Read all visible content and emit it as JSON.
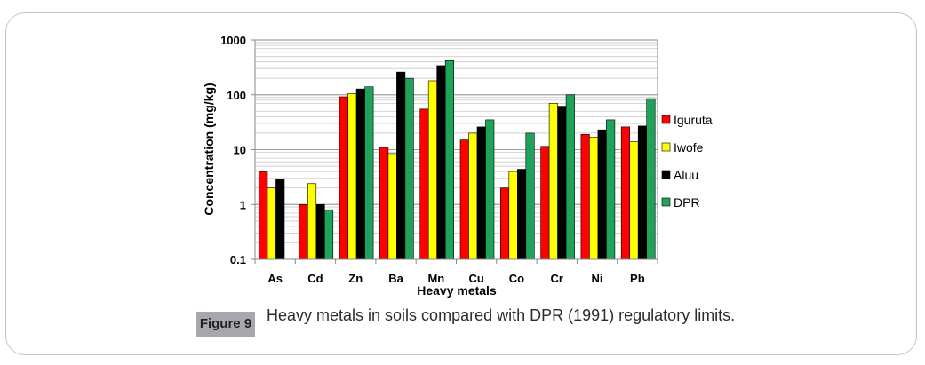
{
  "figure": {
    "label": "Figure 9",
    "caption": "Heavy metals in soils compared with DPR (1991) regulatory limits."
  },
  "chart_data": {
    "type": "bar",
    "title": "",
    "xlabel": "Heavy metals",
    "ylabel": "Concentration (mg/kg)",
    "yscale": "log",
    "ylim": [
      0.1,
      1000
    ],
    "yticks": [
      "0.1",
      "1",
      "10",
      "100",
      "1000"
    ],
    "grid": true,
    "legend": "right",
    "categories": [
      "As",
      "Cd",
      "Zn",
      "Ba",
      "Mn",
      "Cu",
      "Co",
      "Cr",
      "Ni",
      "Pb"
    ],
    "series": [
      {
        "name": "Iguruta",
        "color": "#ff0000",
        "values": [
          4,
          1,
          92,
          11,
          55,
          15,
          2,
          11.5,
          19,
          26
        ]
      },
      {
        "name": "Iwofe",
        "color": "#ffff00",
        "values": [
          2,
          2.4,
          105,
          8.5,
          180,
          20,
          4,
          70,
          17,
          14
        ]
      },
      {
        "name": "Aluu",
        "color": "#000000",
        "values": [
          2.9,
          1,
          128,
          260,
          340,
          26,
          4.4,
          62,
          23,
          27
        ]
      },
      {
        "name": "DPR",
        "color": "#1fa35a",
        "values": [
          null,
          0.8,
          140,
          200,
          420,
          35,
          20,
          100,
          35,
          85
        ]
      }
    ]
  }
}
